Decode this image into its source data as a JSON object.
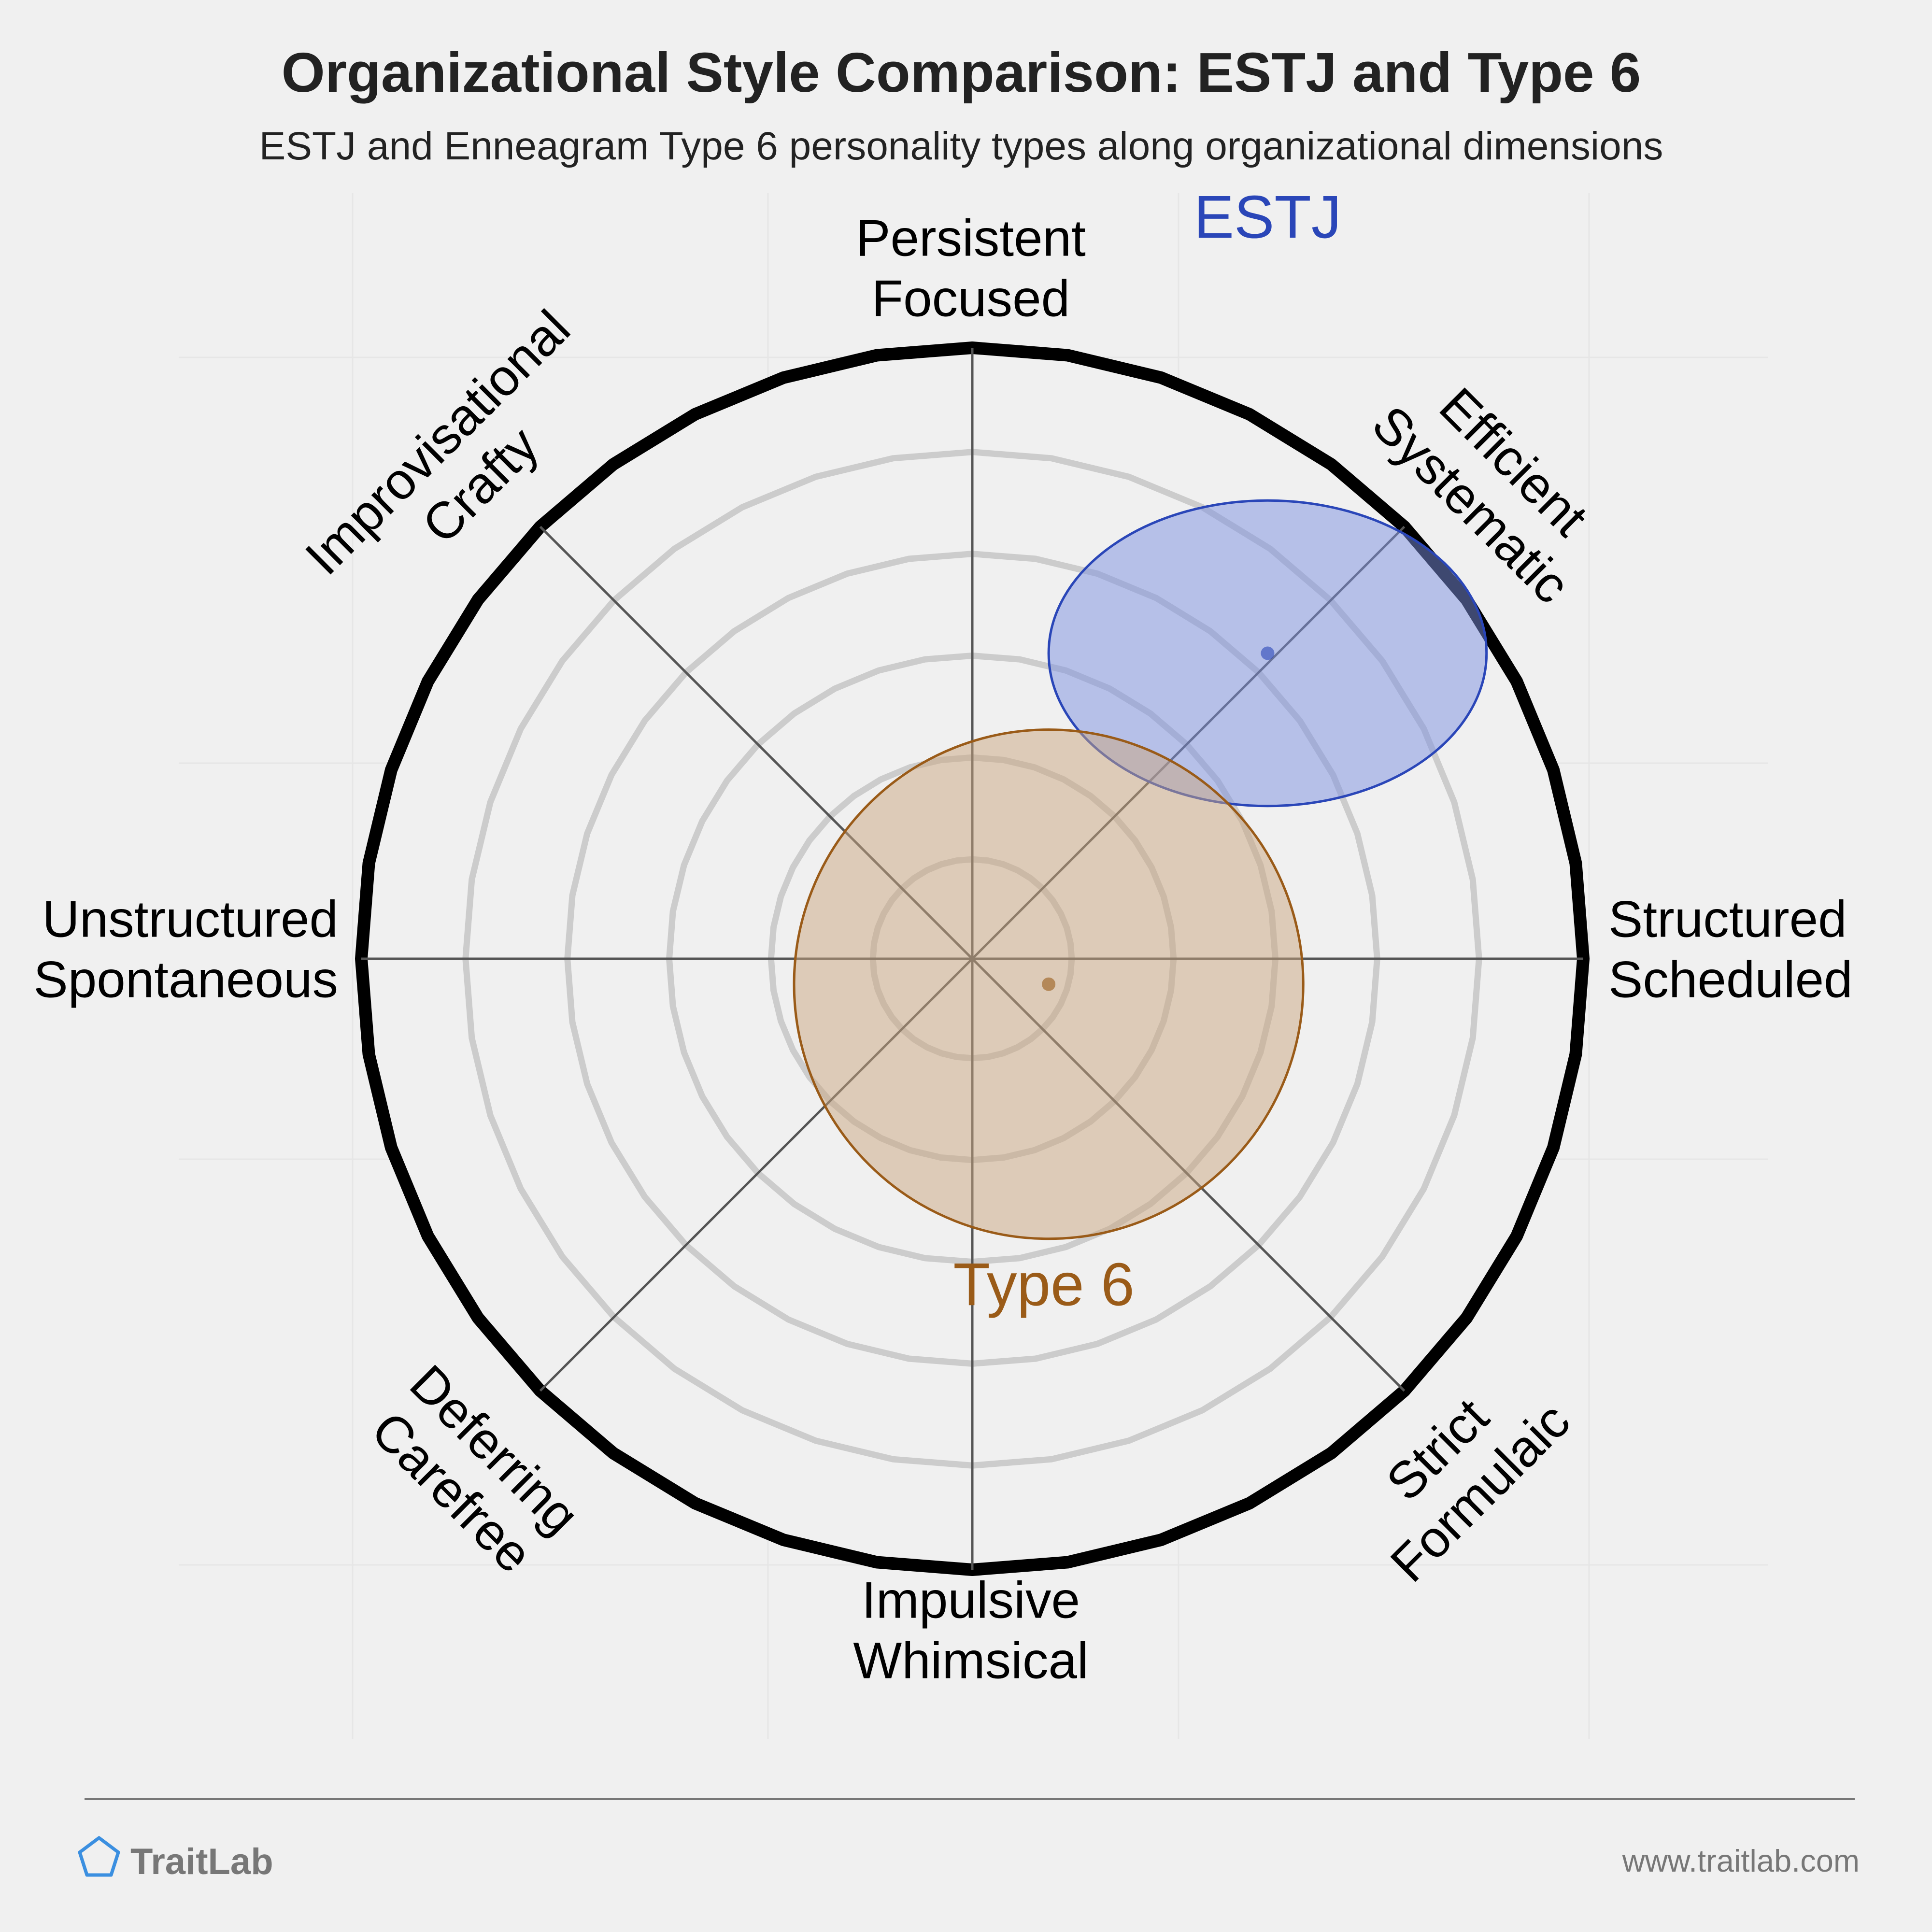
{
  "chart_data": {
    "type": "radar-scatter",
    "title": "Organizational Style Comparison: ESTJ and Type 6",
    "subtitle": "ESTJ and Enneagram Type 6 personality types along organizational dimensions",
    "axes": [
      {
        "id": "persistent",
        "lines": [
          "Persistent",
          "Focused"
        ]
      },
      {
        "id": "efficient",
        "lines": [
          "Efficient",
          "Systematic"
        ]
      },
      {
        "id": "structured",
        "lines": [
          "Structured",
          "Scheduled"
        ]
      },
      {
        "id": "strict",
        "lines": [
          "Strict",
          "Formulaic"
        ]
      },
      {
        "id": "impulsive",
        "lines": [
          "Impulsive",
          "Whimsical"
        ]
      },
      {
        "id": "deferring",
        "lines": [
          "Deferring",
          "Carefree"
        ]
      },
      {
        "id": "unstructured",
        "lines": [
          "Unstructured",
          "Spontaneous"
        ]
      },
      {
        "id": "improvisational",
        "lines": [
          "Improvisational",
          "Crafty"
        ]
      }
    ],
    "rings": 6,
    "ring_max": 6,
    "series": [
      {
        "name": "ESTJ",
        "x": 2.9,
        "y": 3.0,
        "spread_x": 2.15,
        "spread_y": 1.5,
        "color": "#2a46b8",
        "fill": "#7b8fe0"
      },
      {
        "name": "Type 6",
        "x": 0.75,
        "y": -0.25,
        "spread_x": 2.5,
        "spread_y": 2.5,
        "color": "#9a5b18",
        "fill": "#c9a57f"
      }
    ]
  },
  "branding": {
    "name": "TraitLab",
    "url": "www.traitlab.com"
  }
}
